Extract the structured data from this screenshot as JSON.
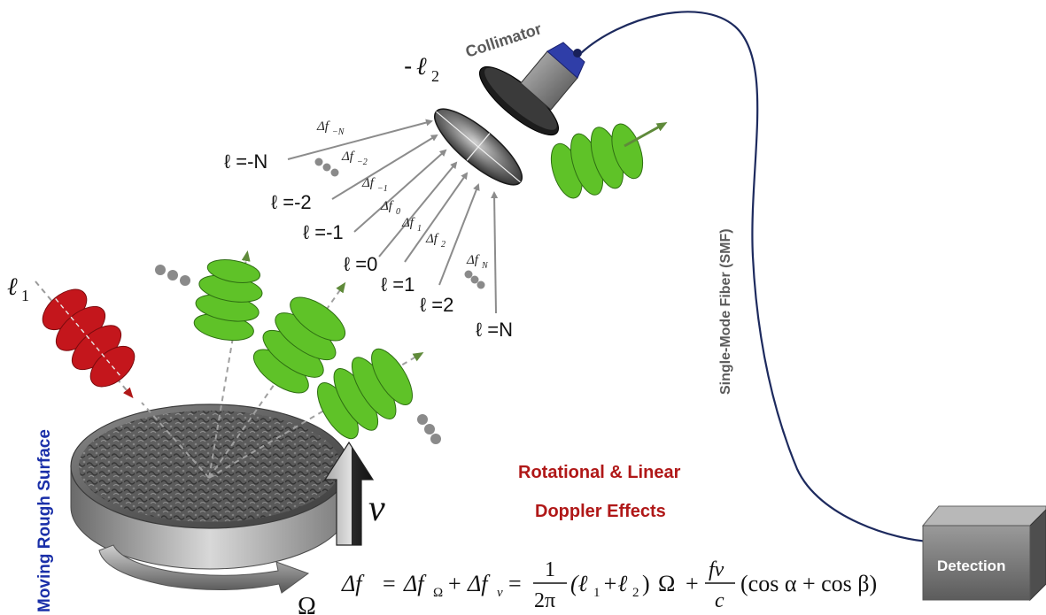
{
  "labels": {
    "collimator": "Collimator",
    "smf": "Single-Mode Fiber (SMF)",
    "detection": "Detection",
    "moving_surface": "Moving Rough Surface",
    "effects_line1": "Rotational & Linear",
    "effects_line2": "Doppler Effects",
    "omega": "Ω",
    "velocity": "v"
  },
  "oam": {
    "incident": {
      "symbol": "ℓ",
      "sub": "1"
    },
    "mode_filter": {
      "prefix": "-",
      "symbol": "ℓ",
      "sub": "2"
    },
    "scattered_modes": [
      {
        "label": "ℓ =-N"
      },
      {
        "label": "ℓ =-2"
      },
      {
        "label": "ℓ =-1"
      },
      {
        "label": "ℓ =0"
      },
      {
        "label": "ℓ =1"
      },
      {
        "label": "ℓ =2"
      },
      {
        "label": "ℓ =N"
      }
    ],
    "shifts": [
      {
        "base": "Δf",
        "sub": "−N"
      },
      {
        "base": "Δf",
        "sub": "−2"
      },
      {
        "base": "Δf",
        "sub": "−1"
      },
      {
        "base": "Δf",
        "sub": "0"
      },
      {
        "base": "Δf",
        "sub": "1"
      },
      {
        "base": "Δf",
        "sub": "2"
      },
      {
        "base": "Δf",
        "sub": "N"
      }
    ]
  },
  "equation": {
    "lhs": "Δf",
    "eq1": "=",
    "term1": "Δf",
    "term1_sub": "Ω",
    "plus1": "+",
    "term2": "Δf",
    "term2_sub": "v",
    "eq2": "=",
    "frac1_num": "1",
    "frac1_den": "2π",
    "paren_l": "(ℓ",
    "l1_sub": "1",
    "plus_l": "+ℓ",
    "l2_sub": "2",
    "paren_r": ")",
    "omega": "Ω",
    "plus2": "+",
    "frac2_num": "fv",
    "frac2_den": "c",
    "cos_term": "(cos α + cos β)"
  },
  "colors": {
    "incident_beam": "#c4161c",
    "scattered_beam": "#5fc228",
    "arrow_green": "#5f8a3a",
    "label_red": "#b01818",
    "label_blue": "#1a2fa8",
    "fiber": "#1d2a5e",
    "label_gray": "#5a5a5a"
  }
}
